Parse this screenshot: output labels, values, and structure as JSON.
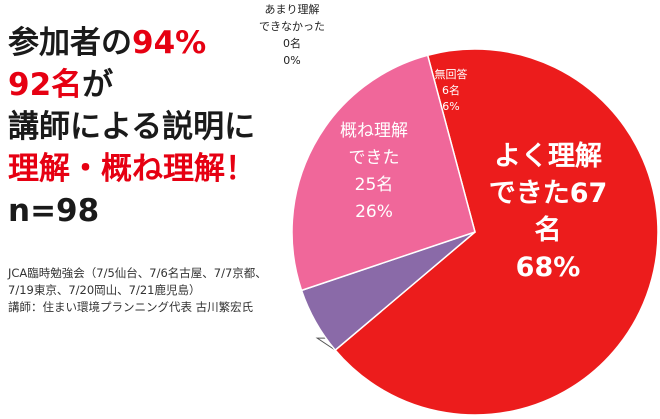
{
  "headline": {
    "line1_prefix": "参加者の",
    "line1_pct": "94%",
    "line2_count": "92名",
    "line2_suffix": "が",
    "line3": "講師による説明に",
    "line4": "理解・概ね理解！",
    "line5": "n=98"
  },
  "notes": [
    "JCA臨時勉強会（7/5仙台、7/6名古屋、7/7京都、",
    "7/19東京、7/20岡山、7/21鹿児島）",
    "講師：住まい環境プランニング代表 古川繁宏氏"
  ],
  "colors": {
    "accent_red": "#e60012",
    "slice_understood": "#ec1c1c",
    "slice_mostly": "#f0679a",
    "slice_no_answer": "#8a6aa8",
    "slice_not_much": "#c6b0d6"
  },
  "chart_data": {
    "type": "pie",
    "total": 98,
    "slices": [
      {
        "name": "よく理解できた",
        "lines": [
          "よく理解",
          "できた67",
          "名",
          "68%"
        ],
        "count": 67,
        "percent": 68,
        "color": "#ec1c1c"
      },
      {
        "name": "あまり理解できなかった",
        "lines": [
          "あまり理解",
          "できなかった",
          "0名",
          "0%"
        ],
        "count": 0,
        "percent": 0,
        "color": "#c6b0d6"
      },
      {
        "name": "無回答",
        "lines": [
          "無回答",
          "6名",
          "6%"
        ],
        "count": 6,
        "percent": 6,
        "color": "#8a6aa8"
      },
      {
        "name": "概ね理解できた",
        "lines": [
          "概ね理解",
          "できた",
          "25名",
          "26%"
        ],
        "count": 25,
        "percent": 26,
        "color": "#f0679a"
      }
    ]
  }
}
